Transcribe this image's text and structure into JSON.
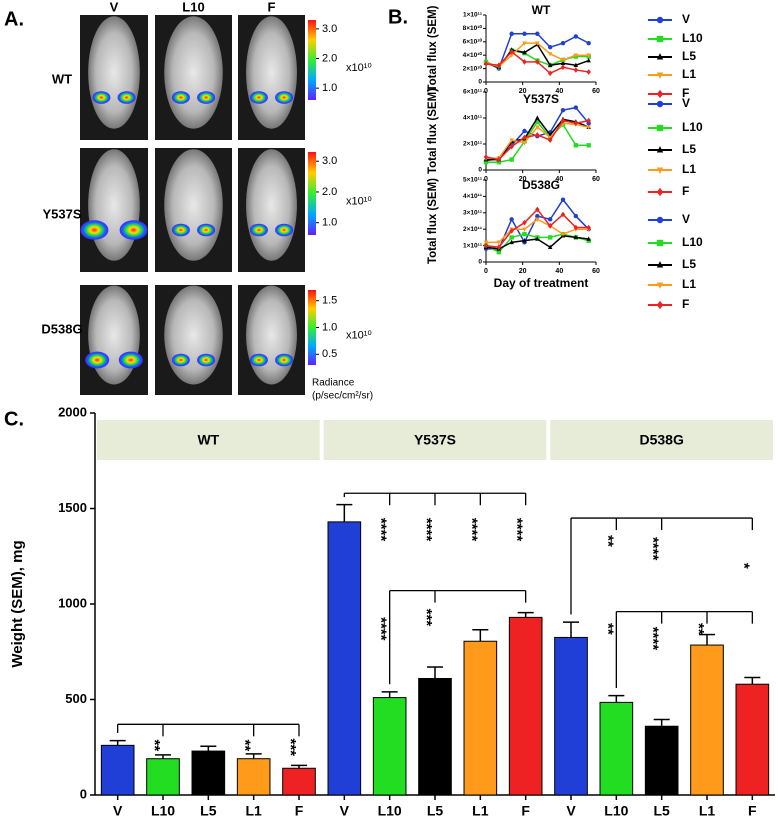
{
  "panel_labels": [
    "A.",
    "B.",
    "C."
  ],
  "imaging": {
    "columns": [
      "V",
      "L10",
      "F"
    ],
    "rows": [
      "WT",
      "Y537S",
      "D538G"
    ],
    "colorbars": [
      {
        "range": [
          0.6,
          3.3
        ],
        "ticks": [
          {
            "value": 3,
            "label": "3.0"
          },
          {
            "value": 2,
            "label": "2.0"
          },
          {
            "value": 1,
            "label": "1.0"
          }
        ],
        "unit": "x10¹⁰"
      },
      {
        "range": [
          0.6,
          3.3
        ],
        "ticks": [
          {
            "value": 3,
            "label": "3.0"
          },
          {
            "value": 2,
            "label": "2.0"
          },
          {
            "value": 1,
            "label": "1.0"
          }
        ],
        "unit": "x10¹⁰"
      },
      {
        "range": [
          0.3,
          1.7
        ],
        "ticks": [
          {
            "value": 1.5,
            "label": "1.5"
          },
          {
            "value": 1,
            "label": "1.0"
          },
          {
            "value": 0.5,
            "label": "0.5"
          }
        ],
        "unit": "x10¹⁰"
      }
    ],
    "radiance_label": "Radiance",
    "radiance_unit": "(p/sec/cm²/sr)"
  },
  "chart_data": [
    {
      "type": "line",
      "title": "WT",
      "ylabel": "Total flux (SEM)",
      "x": [
        0,
        7,
        14,
        21,
        28,
        35,
        42,
        49,
        56
      ],
      "xlim": [
        0,
        60
      ],
      "xticks": [
        0,
        20,
        40,
        60
      ],
      "ylim": [
        0,
        100000000000
      ],
      "yticks": [
        0,
        {
          "value": 20000000000,
          "label": "2×10¹⁰"
        },
        {
          "value": 40000000000,
          "label": "4×10¹⁰"
        },
        {
          "value": 60000000000,
          "label": "6×10¹⁰"
        },
        {
          "value": 80000000000,
          "label": "8×10¹⁰"
        },
        {
          "value": 100000000000,
          "label": "1×10¹¹"
        }
      ],
      "series": [
        {
          "name": "V",
          "color": "#1f3fd6",
          "marker": "circle",
          "values": [
            30000000000,
            20000000000,
            72000000000,
            72000000000,
            72000000000,
            52000000000,
            58000000000,
            68000000000,
            58000000000
          ]
        },
        {
          "name": "L10",
          "color": "#22dd22",
          "marker": "square",
          "values": [
            30000000000,
            22000000000,
            47000000000,
            43000000000,
            32000000000,
            25000000000,
            33000000000,
            38000000000,
            38000000000
          ]
        },
        {
          "name": "L5",
          "color": "#000000",
          "marker": "triangle",
          "values": [
            28000000000,
            22000000000,
            48000000000,
            44000000000,
            56000000000,
            25000000000,
            28000000000,
            25000000000,
            32000000000
          ]
        },
        {
          "name": "L1",
          "color": "#ff9a1a",
          "marker": "triangle-down",
          "values": [
            28000000000,
            23000000000,
            40000000000,
            58000000000,
            58000000000,
            42000000000,
            33000000000,
            40000000000,
            40000000000
          ]
        },
        {
          "name": "F",
          "color": "#ee2222",
          "marker": "diamond",
          "values": [
            27000000000,
            25000000000,
            45000000000,
            30000000000,
            30000000000,
            13000000000,
            22000000000,
            18000000000,
            15000000000
          ]
        }
      ]
    },
    {
      "type": "line",
      "title": "Y537S",
      "ylabel": "Total flux (SEM)",
      "x": [
        0,
        7,
        14,
        21,
        28,
        35,
        42,
        49,
        56
      ],
      "xlim": [
        0,
        60
      ],
      "xticks": [
        0,
        20,
        40,
        60
      ],
      "ylim": [
        0,
        600000000000
      ],
      "yticks": [
        0,
        {
          "value": 200000000000,
          "label": "2×10¹¹"
        },
        {
          "value": 400000000000,
          "label": "4×10¹¹"
        },
        {
          "value": 600000000000,
          "label": "6×10¹¹"
        }
      ],
      "series": [
        {
          "name": "V",
          "color": "#1f3fd6",
          "marker": "circle",
          "values": [
            70000000000,
            90000000000,
            190000000000,
            300000000000,
            260000000000,
            290000000000,
            460000000000,
            480000000000,
            360000000000
          ]
        },
        {
          "name": "L10",
          "color": "#22dd22",
          "marker": "square",
          "values": [
            60000000000,
            60000000000,
            80000000000,
            220000000000,
            370000000000,
            250000000000,
            350000000000,
            190000000000,
            190000000000
          ]
        },
        {
          "name": "L5",
          "color": "#000000",
          "marker": "triangle",
          "values": [
            80000000000,
            80000000000,
            220000000000,
            240000000000,
            400000000000,
            270000000000,
            390000000000,
            370000000000,
            330000000000
          ]
        },
        {
          "name": "L1",
          "color": "#ff9a1a",
          "marker": "triangle-down",
          "values": [
            90000000000,
            90000000000,
            230000000000,
            210000000000,
            330000000000,
            250000000000,
            360000000000,
            350000000000,
            330000000000
          ]
        },
        {
          "name": "F",
          "color": "#ee2222",
          "marker": "diamond",
          "values": [
            100000000000,
            80000000000,
            180000000000,
            250000000000,
            270000000000,
            230000000000,
            380000000000,
            360000000000,
            380000000000
          ]
        }
      ]
    },
    {
      "type": "line",
      "title": "D538G",
      "ylabel": "Total flux (SEM)",
      "xlabel": "Day of treatment",
      "x": [
        0,
        7,
        14,
        21,
        28,
        35,
        42,
        49,
        56
      ],
      "xlim": [
        0,
        60
      ],
      "xticks": [
        0,
        20,
        40,
        60
      ],
      "ylim": [
        0,
        500000000000
      ],
      "yticks": [
        0,
        {
          "value": 100000000000,
          "label": "1×10¹¹"
        },
        {
          "value": 200000000000,
          "label": "2×10¹¹"
        },
        {
          "value": 300000000000,
          "label": "3×10¹¹"
        },
        {
          "value": 400000000000,
          "label": "4×10¹¹"
        },
        {
          "value": 500000000000,
          "label": "5×10¹¹"
        }
      ],
      "series": [
        {
          "name": "V",
          "color": "#1f3fd6",
          "marker": "circle",
          "values": [
            80000000000,
            80000000000,
            260000000000,
            120000000000,
            280000000000,
            260000000000,
            380000000000,
            280000000000,
            200000000000
          ]
        },
        {
          "name": "L10",
          "color": "#22dd22",
          "marker": "square",
          "values": [
            100000000000,
            60000000000,
            150000000000,
            170000000000,
            150000000000,
            150000000000,
            170000000000,
            150000000000,
            130000000000
          ]
        },
        {
          "name": "L5",
          "color": "#000000",
          "marker": "triangle",
          "values": [
            90000000000,
            80000000000,
            120000000000,
            130000000000,
            140000000000,
            90000000000,
            160000000000,
            150000000000,
            140000000000
          ]
        },
        {
          "name": "L1",
          "color": "#ff9a1a",
          "marker": "triangle-down",
          "values": [
            120000000000,
            120000000000,
            200000000000,
            200000000000,
            260000000000,
            220000000000,
            170000000000,
            200000000000,
            200000000000
          ]
        },
        {
          "name": "F",
          "color": "#ee2222",
          "marker": "diamond",
          "values": [
            100000000000,
            90000000000,
            190000000000,
            240000000000,
            320000000000,
            220000000000,
            290000000000,
            210000000000,
            210000000000
          ]
        }
      ]
    },
    {
      "type": "bar",
      "ylabel": "Weight (SEM), mg",
      "groups": [
        "WT",
        "Y537S",
        "D538G"
      ],
      "categories": [
        "V",
        "L10",
        "L5",
        "L1",
        "F",
        "V",
        "L10",
        "L5",
        "L1",
        "F",
        "V",
        "L10",
        "L5",
        "L1",
        "F"
      ],
      "values": [
        260,
        190,
        230,
        190,
        140,
        1430,
        510,
        610,
        805,
        930,
        825,
        485,
        360,
        785,
        580
      ],
      "errors": [
        25,
        20,
        25,
        25,
        15,
        90,
        30,
        60,
        60,
        25,
        80,
        35,
        35,
        55,
        35
      ],
      "colors": [
        "#1f3fd6",
        "#22dd22",
        "#000000",
        "#ff9a1a",
        "#ee2222",
        "#1f3fd6",
        "#22dd22",
        "#000000",
        "#ff9a1a",
        "#ee2222",
        "#1f3fd6",
        "#22dd22",
        "#000000",
        "#ff9a1a",
        "#ee2222"
      ],
      "ylim": [
        0,
        2000
      ],
      "yticks": [
        0,
        500,
        1000,
        1500,
        2000
      ],
      "annotations": [
        "**",
        "**",
        "***",
        "****",
        "****",
        "****",
        "****",
        "****",
        "***",
        "**",
        "****",
        "*",
        "**",
        "****",
        "**"
      ]
    }
  ]
}
